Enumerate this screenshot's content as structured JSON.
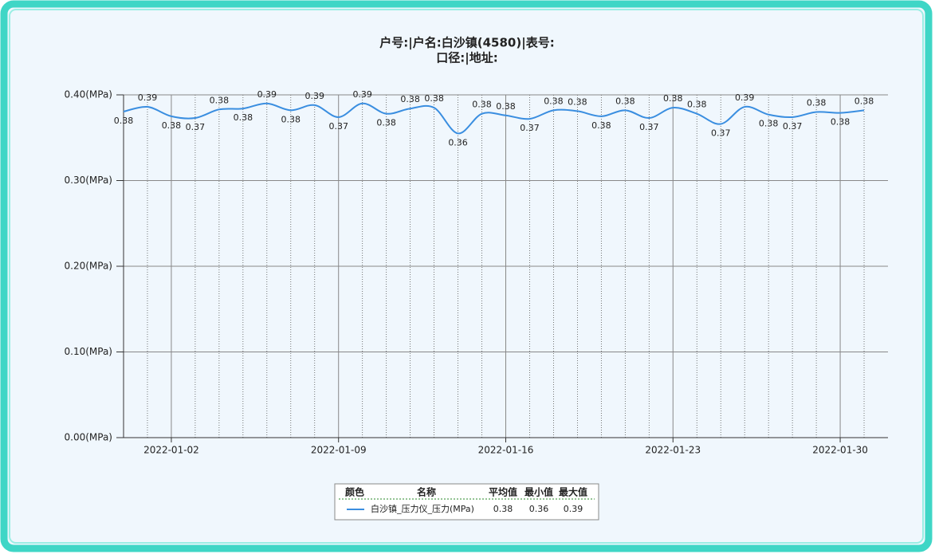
{
  "chart_data": {
    "type": "line",
    "title": [
      "户号:|户名:白沙镇(4580)|表号:",
      "口径:|地址:"
    ],
    "x": [
      "2021-12-31",
      "2022-01-01",
      "2022-01-02",
      "2022-01-03",
      "2022-01-04",
      "2022-01-05",
      "2022-01-06",
      "2022-01-07",
      "2022-01-08",
      "2022-01-09",
      "2022-01-10",
      "2022-01-11",
      "2022-01-12",
      "2022-01-13",
      "2022-01-14",
      "2022-01-15",
      "2022-01-16",
      "2022-01-17",
      "2022-01-18",
      "2022-01-19",
      "2022-01-20",
      "2022-01-21",
      "2022-01-22",
      "2022-01-23",
      "2022-01-24",
      "2022-01-25",
      "2022-01-26",
      "2022-01-27",
      "2022-01-28",
      "2022-01-29",
      "2022-01-30",
      "2022-01-31"
    ],
    "series": [
      {
        "name": "白沙镇_压力仪_压力(MPa)",
        "color": "#3a8ee0",
        "values": [
          0.3805,
          0.386,
          0.375,
          0.373,
          0.383,
          0.384,
          0.39,
          0.382,
          0.388,
          0.374,
          0.39,
          0.378,
          0.384,
          0.385,
          0.355,
          0.378,
          0.376,
          0.372,
          0.382,
          0.381,
          0.375,
          0.382,
          0.373,
          0.385,
          0.378,
          0.366,
          0.386,
          0.377,
          0.374,
          0.38,
          0.379,
          0.382
        ],
        "value_labels": [
          "0.38",
          "0.39",
          "0.38",
          "0.37",
          "0.38",
          "0.38",
          "0.39",
          "0.38",
          "0.39",
          "0.37",
          "0.39",
          "0.38",
          "0.38",
          "0.38",
          "0.36",
          "0.38",
          "0.38",
          "0.37",
          "0.38",
          "0.38",
          "0.38",
          "0.38",
          "0.37",
          "0.38",
          "0.38",
          "0.37",
          "0.39",
          "0.38",
          "0.37",
          "0.38",
          "0.38",
          "0.38"
        ]
      }
    ],
    "xlim": [
      "2021-12-31",
      "2022-02-01"
    ],
    "xticks": [
      "2022-01-02",
      "2022-01-09",
      "2022-01-16",
      "2022-01-23",
      "2022-01-30"
    ],
    "ylim": [
      0,
      0.4
    ],
    "yticks": [
      {
        "value": 0,
        "label": "0.00(MPa)"
      },
      {
        "value": 0.1,
        "label": "0.10(MPa)"
      },
      {
        "value": 0.2,
        "label": "0.20(MPa)"
      },
      {
        "value": 0.3,
        "label": "0.30(MPa)"
      },
      {
        "value": 0.4,
        "label": "0.40(MPa)"
      }
    ],
    "grid": true,
    "legend_table": {
      "headers": [
        "颜色",
        "名称",
        "平均值",
        "最小值",
        "最大值"
      ],
      "average": 0.38,
      "min": 0.36,
      "max": 0.39
    }
  }
}
